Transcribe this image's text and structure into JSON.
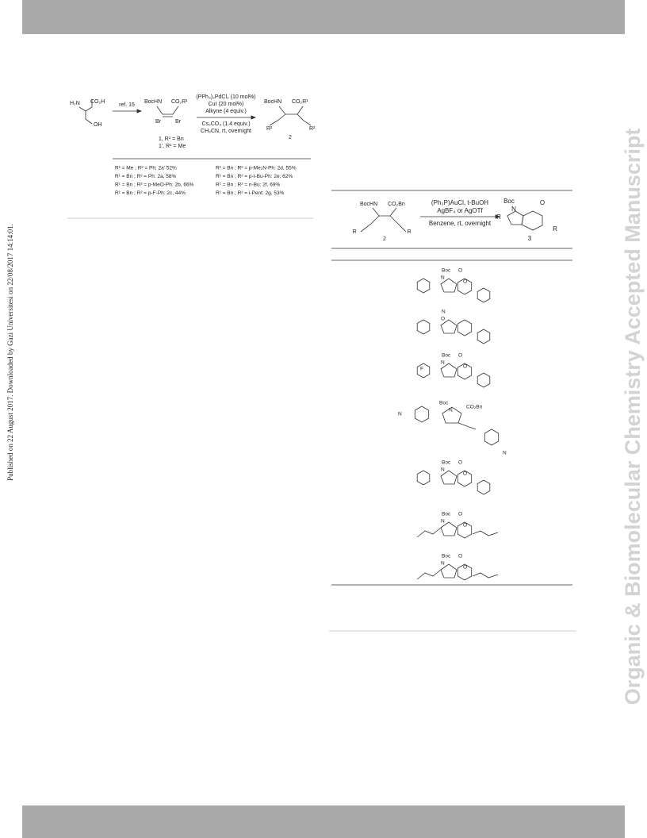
{
  "side_note": "Published on 22 August 2017. Downloaded by Gazi Universitesi on 22/08/2017 14:14:01.",
  "watermark": "Organic & Biomolecular Chemistry Accepted Manuscript",
  "scheme1": {
    "start": [
      "H₂N",
      "CO₂H",
      "OH"
    ],
    "step1": "ref. 15",
    "intermediate": [
      "BocHN",
      "CO₂R¹",
      "Br",
      "Br"
    ],
    "reagents": [
      "(PPh₃)₂PdCl₂ (10 mol%)",
      "CuI (20 mol%)",
      "Alkyne (4 equiv.)",
      "Cs₂CO₃ (1.4 equiv.)",
      "CH₃CN, rt, overnight"
    ],
    "compound_labels": [
      "1, R¹ = Bn",
      "1', R¹ = Me"
    ],
    "product": [
      "BocHN",
      "CO₂R¹",
      "R²",
      "R²",
      "2"
    ],
    "substituents": [
      "R¹ = Me ; R² = Ph: 2a' 52%",
      "R¹ = Bn ; R² = Ph: 2a, 58%",
      "R¹ = Bn ; R² = p-MeO-Ph: 2b, 66%",
      "R¹ = Bn ; R² = p-F-Ph: 2c, 44%",
      "R¹ = Bn ; R² = p-Me₂N-Ph: 2d, 55%",
      "R¹ = Bn ; R² = p-t-Bu-Ph: 2e, 62%",
      "R¹ = Bn ; R² = n-Bu: 2f, 69%",
      "R¹ = Bn ; R² = i-Pent: 2g, 53%"
    ]
  },
  "scheme2": {
    "reactant": [
      "BocHN",
      "CO₂Bn",
      "R",
      "R",
      "2"
    ],
    "reagents": [
      "(Ph₃P)AuCl, t-BuOH",
      "AgBF₄ or AgOTf",
      "Benzene, rt, overnight"
    ],
    "product": [
      "Boc",
      "O",
      "N",
      "R",
      "R",
      "3"
    ],
    "rows": [
      {
        "labels": [
          "Boc",
          "N",
          "O",
          "O"
        ]
      },
      {
        "labels": [
          "N",
          "O"
        ]
      },
      {
        "labels": [
          "Boc",
          "N",
          "O",
          "O",
          "F"
        ]
      },
      {
        "labels": [
          "Boc",
          "N",
          "CO₂Bn",
          "N",
          "N"
        ]
      },
      {
        "labels": [
          "Boc",
          "N",
          "O",
          "O"
        ]
      },
      {
        "labels": [
          "Boc",
          "N",
          "O",
          "O"
        ]
      },
      {
        "labels": [
          "Boc",
          "N",
          "O",
          "O"
        ]
      }
    ]
  }
}
